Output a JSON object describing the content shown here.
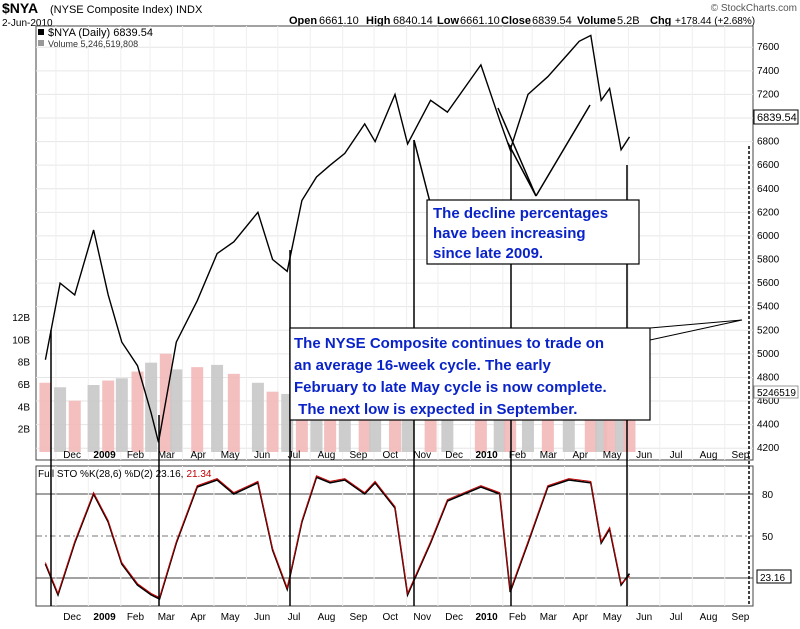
{
  "header": {
    "symbol": "$NYA",
    "name": "(NYSE Composite Index)",
    "exchange": "INDX",
    "date": "2-Jun-2010",
    "open_label": "Open",
    "open": "6661.10",
    "high_label": "High",
    "high": "6840.14",
    "low_label": "Low",
    "low": "6661.10",
    "close_label": "Close",
    "close": "6839.54",
    "volume_label": "Volume",
    "volume": "5.2B",
    "chg_label": "Chg",
    "chg": "+178.44 (+2.68%)",
    "watermark": "© StockCharts.com"
  },
  "legend": {
    "price": "$NYA (Daily) 6839.54",
    "volume": "Volume 5,246,519,808",
    "sto_prefix": "Full STO %K(28,6) %D(2) ",
    "sto_k": "23.16,",
    "sto_d": "21.34"
  },
  "badges": {
    "price": "6839.54",
    "volume": "5246519",
    "sto": "23.16"
  },
  "callouts": {
    "decline": [
      "The decline percentages",
      "have been increasing",
      "since late 2009."
    ],
    "cycle": [
      "The NYSE Composite continues to trade on",
      "an average 16-week cycle.  The early",
      "February to late May cycle is now complete.",
      " The next low is expected in September."
    ]
  },
  "colors": {
    "price_line": "#000000",
    "price_red": "#c00000",
    "volume_bar": "#f2b8b8",
    "volume_gray": "#c8c8c8",
    "callout_text": "#0a23c8",
    "sto_k": "#000000",
    "sto_d": "#c00000"
  },
  "chart_data": [
    {
      "type": "line",
      "panel": "price",
      "title": "$NYA (NYSE Composite Index)",
      "x_labels": [
        "Dec",
        "2009",
        "Feb",
        "Mar",
        "Apr",
        "May",
        "Jun",
        "Jul",
        "Aug",
        "Sep",
        "Oct",
        "Nov",
        "Dec",
        "2010",
        "Feb",
        "Mar",
        "Apr",
        "May",
        "Jun",
        "Jul",
        "Aug",
        "Sep"
      ],
      "y_ticks": [
        4200,
        4400,
        4600,
        4800,
        5000,
        5200,
        5400,
        5600,
        5800,
        6000,
        6200,
        6400,
        6600,
        6800,
        7000,
        7200,
        7400,
        7600
      ],
      "ylim": [
        4100,
        7780
      ],
      "series": [
        {
          "x": [
            "2008-11-21",
            "2008-12-05",
            "2008-12-19",
            "2009-01-06",
            "2009-01-20",
            "2009-02-02",
            "2009-02-17",
            "2009-03-02",
            "2009-03-09",
            "2009-03-26",
            "2009-04-15",
            "2009-05-04",
            "2009-05-20",
            "2009-06-12",
            "2009-06-26",
            "2009-07-10",
            "2009-07-24",
            "2009-08-07",
            "2009-08-20",
            "2009-09-03",
            "2009-09-22",
            "2009-10-02",
            "2009-10-21",
            "2009-11-02",
            "2009-11-24",
            "2009-12-10",
            "2010-01-11",
            "2010-01-29",
            "2010-02-08",
            "2010-02-25",
            "2010-03-16",
            "2010-04-05",
            "2010-04-15",
            "2010-04-26",
            "2010-05-06",
            "2010-05-14",
            "2010-05-25",
            "2010-06-02"
          ],
          "y": [
            4950,
            5600,
            5500,
            6050,
            5500,
            5100,
            4900,
            4500,
            4250,
            5100,
            5450,
            5850,
            5950,
            6200,
            5800,
            5700,
            6300,
            6500,
            6600,
            6700,
            6950,
            6800,
            7200,
            6780,
            7150,
            7050,
            7450,
            6980,
            6730,
            7200,
            7350,
            7550,
            7650,
            7700,
            7150,
            7250,
            6730,
            6840
          ]
        }
      ]
    },
    {
      "type": "bar",
      "panel": "volume",
      "y_ticks": [
        "2B",
        "4B",
        "6B",
        "8B",
        "10B",
        "12B"
      ],
      "ylim": [
        0,
        12
      ],
      "x": [
        "2008-11-21",
        "2008-12-05",
        "2008-12-19",
        "2009-01-06",
        "2009-01-20",
        "2009-02-02",
        "2009-02-17",
        "2009-03-02",
        "2009-03-16",
        "2009-03-26",
        "2009-04-15",
        "2009-05-04",
        "2009-05-20",
        "2009-06-12",
        "2009-06-26",
        "2009-07-10",
        "2009-07-24",
        "2009-08-07",
        "2009-08-20",
        "2009-09-03",
        "2009-09-22",
        "2009-10-02",
        "2009-10-21",
        "2009-11-02",
        "2009-11-24",
        "2009-12-10",
        "2010-01-11",
        "2010-01-29",
        "2010-02-08",
        "2010-02-25",
        "2010-03-16",
        "2010-04-05",
        "2010-04-26",
        "2010-05-06",
        "2010-05-14",
        "2010-05-25",
        "2010-06-02"
      ],
      "values": [
        6.2,
        5.8,
        4.6,
        6.0,
        6.4,
        6.6,
        7.2,
        8.0,
        8.8,
        7.4,
        7.6,
        7.8,
        7.0,
        6.2,
        5.4,
        5.2,
        5.0,
        5.6,
        4.8,
        4.6,
        4.8,
        4.6,
        4.4,
        4.4,
        4.0,
        3.8,
        3.6,
        3.8,
        4.2,
        3.8,
        3.6,
        3.8,
        4.2,
        6.0,
        5.2,
        4.6,
        5.2
      ]
    },
    {
      "type": "line",
      "panel": "stochastic",
      "title": "Full STO %K(28,6) %D(2)",
      "x_labels": [
        "Dec",
        "2009",
        "Feb",
        "Mar",
        "Apr",
        "May",
        "Jun",
        "Jul",
        "Aug",
        "Sep",
        "Oct",
        "Nov",
        "Dec",
        "2010",
        "Feb",
        "Mar",
        "Apr",
        "May",
        "Jun",
        "Jul",
        "Aug",
        "Sep"
      ],
      "y_ticks": [
        50,
        80
      ],
      "ylim": [
        0,
        100
      ],
      "x": [
        "2008-11-21",
        "2008-12-03",
        "2008-12-19",
        "2009-01-06",
        "2009-01-20",
        "2009-02-02",
        "2009-02-17",
        "2009-03-02",
        "2009-03-10",
        "2009-03-26",
        "2009-04-15",
        "2009-05-04",
        "2009-05-20",
        "2009-06-12",
        "2009-06-26",
        "2009-07-10",
        "2009-07-24",
        "2009-08-07",
        "2009-08-20",
        "2009-09-03",
        "2009-09-22",
        "2009-10-02",
        "2009-10-21",
        "2009-11-02",
        "2009-11-24",
        "2009-12-10",
        "2010-01-11",
        "2010-01-29",
        "2010-02-08",
        "2010-02-25",
        "2010-03-16",
        "2010-04-05",
        "2010-04-26",
        "2010-05-06",
        "2010-05-14",
        "2010-05-25",
        "2010-06-02"
      ],
      "series": [
        {
          "name": "%K(28,6)",
          "values": [
            30,
            8,
            45,
            80,
            60,
            30,
            15,
            8,
            5,
            45,
            85,
            90,
            80,
            88,
            40,
            12,
            60,
            92,
            88,
            90,
            80,
            88,
            70,
            8,
            45,
            75,
            85,
            80,
            10,
            45,
            85,
            90,
            88,
            45,
            55,
            15,
            23.16
          ]
        },
        {
          "name": "%D(2)",
          "values": [
            31,
            9,
            46,
            81,
            61,
            31,
            16,
            9,
            6,
            46,
            86,
            91,
            81,
            89,
            41,
            13,
            61,
            93,
            89,
            91,
            81,
            89,
            71,
            9,
            46,
            76,
            86,
            81,
            11,
            46,
            86,
            91,
            89,
            46,
            56,
            16,
            21.34
          ]
        }
      ]
    }
  ]
}
